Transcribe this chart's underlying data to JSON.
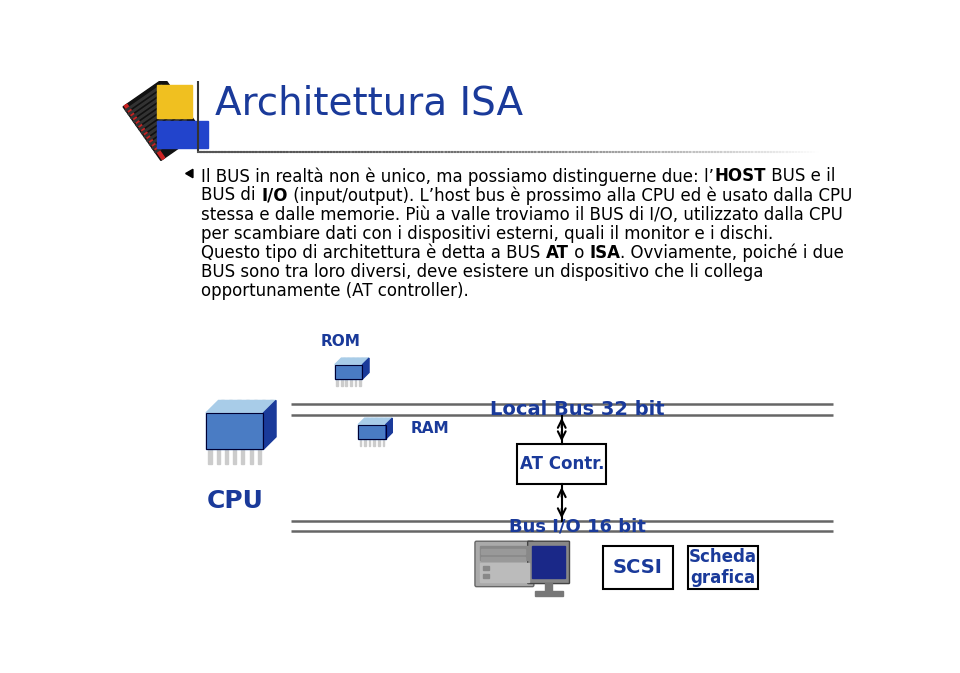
{
  "title": "Architettura ISA",
  "title_color": "#1a3a9a",
  "bg_color": "#ffffff",
  "text_color": "#000000",
  "blue_color": "#1a3a9a",
  "local_bus_label": "Local Bus 32 bit",
  "io_bus_label": "Bus I/O 16 bit",
  "at_contr_label": "AT Contr.",
  "rom_label": "ROM",
  "ram_label": "RAM",
  "cpu_label": "CPU",
  "scsi_label": "SCSI",
  "scheda_label": "Scheda\ngrafica",
  "line1_plain1": "Il BUS in realtà non è unico, ma possiamo distinguerne due: l’",
  "line1_bold1": "HOST",
  "line1_plain2": " BUS e il",
  "line2_plain1": "BUS di ",
  "line2_bold1": "I/O",
  "line2_plain2": " (input/output). L’host bus è prossimo alla CPU ed è usato dalla CPU",
  "line3": "stessa e dalle memorie. Più a valle troviamo il BUS di I/O, utilizzato dalla CPU",
  "line4": "per scambiare dati con i dispositivi esterni, quali il monitor e i dischi.",
  "line5_plain1": "Questo tipo di architettura è detta a BUS ",
  "line5_bold1": "AT",
  "line5_plain2": " o ",
  "line5_bold2": "ISA",
  "line5_plain3": ". Ovviamente, poiché i due",
  "line6": "BUS sono tra loro diversi, deve esistere un dispositivo che li collega",
  "line7": "opportunamente (AT controller).",
  "chip_light": "#7ab8e8",
  "chip_mid": "#4a7cc4",
  "chip_dark": "#1a3a9a",
  "chip_top": "#a8cce8",
  "chip_pin": "#cccccc",
  "hdd_body": "#aaaaaa",
  "hdd_dark": "#888888",
  "monitor_screen": "#1a2888",
  "monitor_body": "#777777"
}
